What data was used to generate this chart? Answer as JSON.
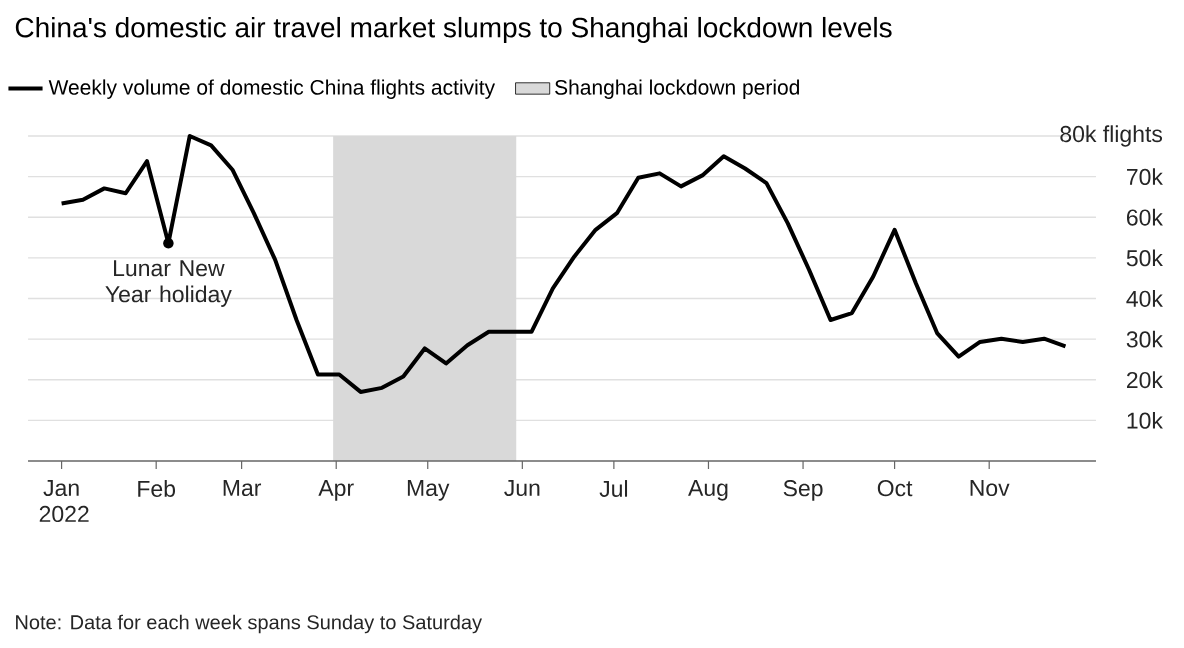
{
  "chart_data": {
    "type": "line",
    "title": "China's domestic air travel market slumps to Shanghai lockdown levels",
    "x": [
      "2022-01-01",
      "2022-01-08",
      "2022-01-15",
      "2022-01-22",
      "2022-01-29",
      "2022-02-05",
      "2022-02-12",
      "2022-02-19",
      "2022-02-26",
      "2022-03-05",
      "2022-03-12",
      "2022-03-19",
      "2022-03-26",
      "2022-04-02",
      "2022-04-09",
      "2022-04-16",
      "2022-04-23",
      "2022-04-30",
      "2022-05-07",
      "2022-05-14",
      "2022-05-21",
      "2022-05-28",
      "2022-06-04",
      "2022-06-11",
      "2022-06-18",
      "2022-06-25",
      "2022-07-02",
      "2022-07-09",
      "2022-07-16",
      "2022-07-23",
      "2022-07-30",
      "2022-08-06",
      "2022-08-13",
      "2022-08-20",
      "2022-08-27",
      "2022-09-03",
      "2022-09-10",
      "2022-09-17",
      "2022-09-24",
      "2022-10-01",
      "2022-10-08",
      "2022-10-15",
      "2022-10-22",
      "2022-10-29",
      "2022-11-05",
      "2022-11-12",
      "2022-11-19",
      "2022-11-26"
    ],
    "series": [
      {
        "name": "Weekly volume of domestic China flights activity",
        "color": "#000000",
        "values": [
          63.4,
          64.3,
          67.1,
          65.9,
          73.8,
          53.6,
          80,
          77.7,
          71.7,
          61,
          49.5,
          34.7,
          21.3,
          21.3,
          17,
          18,
          20.8,
          27.7,
          24,
          28.5,
          31.8,
          31.8,
          31.8,
          42.5,
          50.3,
          56.9,
          61,
          69.7,
          70.8,
          67.6,
          70.3,
          75,
          72,
          68.4,
          58.5,
          47,
          34.7,
          36.4,
          45.4,
          56.9,
          43.7,
          31.4,
          25.7,
          29.3,
          30.1,
          29.3,
          30.1,
          28.2
        ]
      }
    ],
    "xlim": [
      "2021-12-21",
      "2022-12-06"
    ],
    "xticks": [
      {
        "value": "2022-01-01",
        "label": "Jan 2022"
      },
      {
        "value": "2022-02-01",
        "label": "Feb"
      },
      {
        "value": "2022-03-01",
        "label": "Mar"
      },
      {
        "value": "2022-04-01",
        "label": "Apr"
      },
      {
        "value": "2022-05-01",
        "label": "May"
      },
      {
        "value": "2022-06-01",
        "label": "Jun"
      },
      {
        "value": "2022-07-01",
        "label": "Jul"
      },
      {
        "value": "2022-08-01",
        "label": "Aug"
      },
      {
        "value": "2022-09-01",
        "label": "Sep"
      },
      {
        "value": "2022-10-01",
        "label": "Oct"
      },
      {
        "value": "2022-11-01",
        "label": "Nov"
      }
    ],
    "ylim": [
      0,
      80
    ],
    "yticks": [
      {
        "value": 10,
        "label": "10k"
      },
      {
        "value": 20,
        "label": "20k"
      },
      {
        "value": 30,
        "label": "30k"
      },
      {
        "value": 40,
        "label": "40k"
      },
      {
        "value": 50,
        "label": "50k"
      },
      {
        "value": 60,
        "label": "60k"
      },
      {
        "value": 70,
        "label": "70k"
      },
      {
        "value": 80,
        "label": "80k flights"
      }
    ],
    "grid": "y",
    "legend": "top",
    "bands": [
      {
        "axis": "x",
        "from": "2022-03-31",
        "to": "2022-05-30",
        "label": "Shanghai lockdown period",
        "color": "#d9d9d9"
      }
    ],
    "annotations": [
      {
        "text": "Lunar New Year holiday",
        "x": "2022-02-05",
        "y": 53.6
      },
      "Note: Data for each week spans Sunday to Saturday"
    ]
  }
}
